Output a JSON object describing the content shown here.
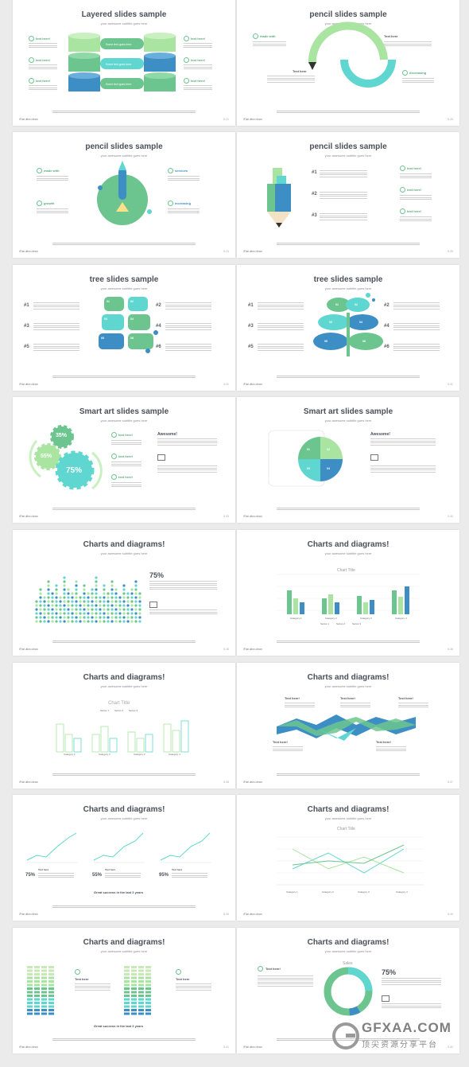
{
  "slides": [
    {
      "title": "Layered slides sample",
      "subtitle": "your awesome subtitle goes here",
      "footer": "iFlat ultra clean",
      "page": "5.21",
      "labels": [
        "text here!",
        "text here!",
        "text here!",
        "text here!",
        "text here!",
        "text here!"
      ],
      "bars": [
        "Some text goes here",
        "Some text goes here",
        "Some text goes here"
      ]
    },
    {
      "title": "pencil slides sample",
      "subtitle": "your awesome subtitle goes here",
      "footer": "iFlat ultra clean",
      "page": "5.26",
      "labels": [
        "made with",
        "Text here",
        "Text here",
        "decreasing"
      ]
    },
    {
      "title": "pencil slides sample",
      "subtitle": "your awesome subtitle goes here",
      "footer": "iFlat ultra clean",
      "page": "5.24",
      "labels": [
        "made with",
        "services",
        "growth",
        "increasing"
      ]
    },
    {
      "title": "pencil slides sample",
      "subtitle": "your awesome subtitle goes here",
      "footer": "iFlat ultra clean",
      "page": "5.26",
      "nums": [
        "#1",
        "#2",
        "#3"
      ],
      "labels": [
        "text here!",
        "text here!",
        "text here!"
      ]
    },
    {
      "title": "tree slides sample",
      "subtitle": "your awesome subtitle goes here",
      "footer": "iFlat ultra clean",
      "page": "5.31",
      "nums": [
        "#1",
        "#3",
        "#5",
        "#2",
        "#4",
        "#6"
      ],
      "leaves": [
        "01",
        "02",
        "03",
        "04",
        "05",
        "06"
      ]
    },
    {
      "title": "tree slides sample",
      "subtitle": "your awesome subtitle goes here",
      "footer": "iFlat ultra clean",
      "page": "5.32",
      "nums": [
        "#1",
        "#3",
        "#5",
        "#2",
        "#4",
        "#6"
      ],
      "leaves": [
        "01",
        "02",
        "03",
        "04",
        "05",
        "06"
      ]
    },
    {
      "title": "Smart art slides sample",
      "subtitle": "your awesome subtitle goes here",
      "footer": "iFlat ultra clean",
      "page": "5.33",
      "gears": [
        "35%",
        "55%",
        "75%"
      ],
      "labels": [
        "text here!",
        "text here!",
        "text here!"
      ],
      "heading": "Awesome!"
    },
    {
      "title": "Smart art slides sample",
      "subtitle": "your awesome subtitle goes here",
      "footer": "iFlat ultra clean",
      "page": "5.34",
      "quad": [
        "01",
        "02",
        "03",
        "04"
      ],
      "heading": "Awesome!"
    },
    {
      "title": "Charts and diagrams!",
      "subtitle": "your awesome subtitle goes here",
      "footer": "iFlat ultra clean",
      "page": "5.35",
      "big": "75%",
      "legend": [
        "data",
        "data",
        "data"
      ]
    },
    {
      "title": "Charts and diagrams!",
      "subtitle": "your awesome subtitle goes here",
      "footer": "iFlat ultra clean",
      "page": "5.36",
      "chart_title": "Chart Title",
      "cats": [
        "Category 1",
        "Category 2",
        "Category 3",
        "Category 4"
      ],
      "legend": [
        "Series 1",
        "Series 2",
        "Series 3"
      ]
    },
    {
      "title": "Charts and diagrams!",
      "subtitle": "your awesome subtitle goes here",
      "footer": "iFlat ultra clean",
      "page": "5.38",
      "chart_title": "Chart Title",
      "cats": [
        "Category 1",
        "Category 2",
        "Category 3",
        "Category 4"
      ],
      "legend": [
        "Series 1",
        "Series 2",
        "Series 3"
      ]
    },
    {
      "title": "Charts and diagrams!",
      "subtitle": "your awesome subtitle goes here",
      "footer": "iFlat ultra clean",
      "page": "5.37",
      "labels": [
        "Text here!",
        "Text here!",
        "Text here!",
        "Text here!",
        "Text here!"
      ]
    },
    {
      "title": "Charts and diagrams!",
      "subtitle": "your awesome subtitle goes here",
      "footer": "iFlat ultra clean",
      "page": "5.39",
      "pcts": [
        "75%",
        "55%",
        "95%"
      ],
      "caption": "Great success in the last 3 years",
      "labels": [
        "Text here",
        "Text here",
        "Text here"
      ]
    },
    {
      "title": "Charts and diagrams!",
      "subtitle": "your awesome subtitle goes here",
      "footer": "iFlat ultra clean",
      "page": "5.40",
      "chart_title": "Chart Title",
      "cats": [
        "Category 1",
        "Category 2",
        "Category 3",
        "Category 4"
      ]
    },
    {
      "title": "Charts and diagrams!",
      "subtitle": "your awesome subtitle goes here",
      "footer": "iFlat ultra clean",
      "page": "5.41",
      "labels": [
        "Text here",
        "Text here"
      ],
      "caption": "Great success in the last 3 years"
    },
    {
      "title": "Charts and diagrams!",
      "subtitle": "your awesome subtitle goes here",
      "footer": "iFlat ultra clean",
      "page": "5.42",
      "chart_title": "Sales",
      "big": "75%",
      "label": "Text here!"
    }
  ],
  "watermark": {
    "brand": "GFXAA.COM",
    "sub": "顶尖资源分享平台"
  },
  "colors": {
    "green": "#6cc58e",
    "teal": "#5fd6cf",
    "blue": "#3e8ec6",
    "light_green": "#a9e4a0"
  }
}
